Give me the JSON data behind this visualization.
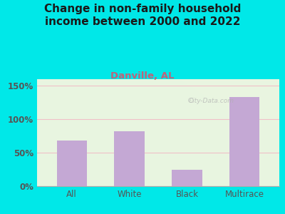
{
  "title": "Change in non-family household\nincome between 2000 and 2022",
  "subtitle": "Danville, AL",
  "categories": [
    "All",
    "White",
    "Black",
    "Multirace"
  ],
  "values": [
    68,
    82,
    25,
    133
  ],
  "bar_color": "#c4a8d4",
  "title_fontsize": 11,
  "subtitle_fontsize": 9.5,
  "subtitle_color": "#c0627a",
  "title_color": "#1a1a1a",
  "outer_bg": "#00e8e8",
  "plot_bg": "#e8f5e0",
  "yticks": [
    0,
    50,
    100,
    150
  ],
  "ylim": [
    0,
    160
  ],
  "tick_label_color": "#555555",
  "grid_color": "#f0c0c8",
  "watermark": "City-Data.com"
}
